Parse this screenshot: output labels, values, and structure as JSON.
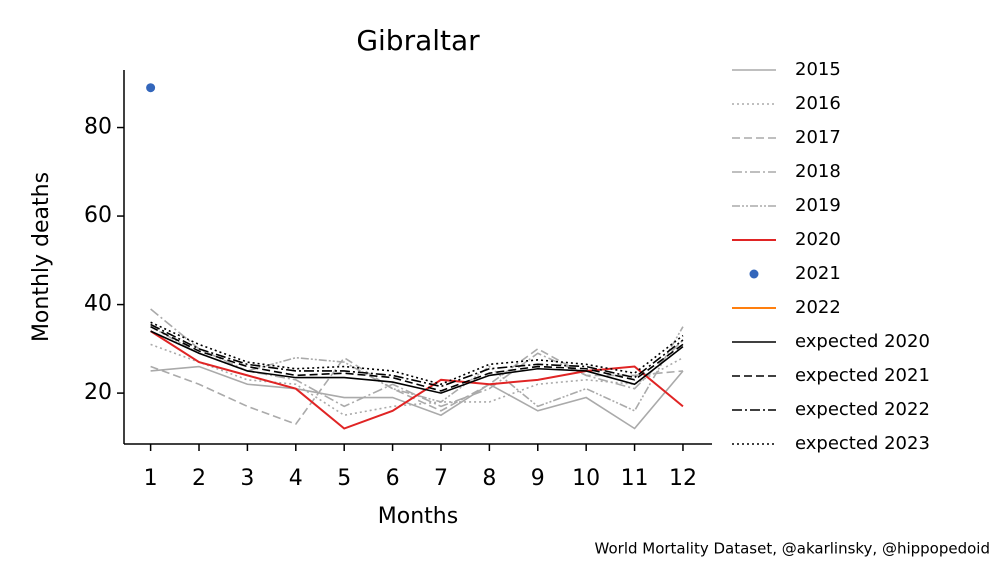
{
  "chart_data": {
    "type": "line",
    "title": "Gibraltar",
    "xlabel": "Months",
    "ylabel": "Monthly deaths",
    "caption": "World Mortality Dataset, @akarlinsky, @hippopedoid",
    "x": [
      1,
      2,
      3,
      4,
      5,
      6,
      7,
      8,
      9,
      10,
      11,
      12
    ],
    "xlim": [
      0.45,
      12.6
    ],
    "xticks": [
      1,
      2,
      3,
      4,
      5,
      6,
      7,
      8,
      9,
      10,
      11,
      12
    ],
    "ylim": [
      8.5,
      93
    ],
    "yticks": [
      20,
      40,
      60,
      80
    ],
    "legend": "outside right",
    "series": [
      {
        "name": "2015",
        "color": "#aaaaaa",
        "linestyle": "solid",
        "values": [
          25,
          26,
          22,
          21,
          19,
          19,
          15,
          22,
          16,
          19,
          12,
          25
        ]
      },
      {
        "name": "2016",
        "color": "#aaaaaa",
        "linestyle": "dotted",
        "values": [
          31,
          27,
          23,
          22,
          15,
          17,
          18,
          18,
          22,
          23,
          22,
          28
        ]
      },
      {
        "name": "2017",
        "color": "#aaaaaa",
        "linestyle": "dashed",
        "values": [
          26,
          22,
          17,
          13,
          28,
          21,
          16,
          22,
          30,
          24,
          24,
          25
        ]
      },
      {
        "name": "2018",
        "color": "#aaaaaa",
        "linestyle": "dashdot",
        "values": [
          39,
          30,
          25,
          23,
          17,
          22,
          17,
          21,
          29,
          24,
          21,
          32
        ]
      },
      {
        "name": "2019",
        "color": "#aaaaaa",
        "linestyle": "dashdotdot",
        "values": [
          35,
          29,
          25,
          28,
          27,
          21,
          18,
          26,
          17,
          21,
          16,
          35
        ]
      },
      {
        "name": "2020",
        "color": "#e02424",
        "linestyle": "solid",
        "width": 2,
        "values": [
          34,
          27,
          24,
          21,
          12,
          16,
          23,
          22,
          23,
          25,
          26,
          17
        ]
      },
      {
        "name": "2021",
        "color": "#3366bb",
        "marker": "o",
        "values": [
          89,
          null,
          null,
          null,
          null,
          null,
          null,
          null,
          null,
          null,
          null,
          null
        ]
      },
      {
        "name": "2022",
        "color": "#ff7f0e",
        "linestyle": "solid",
        "width": 2,
        "values": [
          null,
          null,
          null,
          null,
          null,
          null,
          null,
          null,
          null,
          null,
          null,
          null
        ]
      },
      {
        "name": "expected 2020",
        "color": "#000000",
        "linestyle": "solid",
        "values": [
          34,
          29,
          25,
          23.5,
          23.5,
          22.5,
          20,
          24,
          25.5,
          25,
          22,
          30.5
        ]
      },
      {
        "name": "expected 2021",
        "color": "#000000",
        "linestyle": "dashed",
        "values": [
          35,
          29.5,
          26,
          24,
          24.5,
          23.5,
          20.5,
          24.5,
          26,
          25.5,
          23,
          31
        ]
      },
      {
        "name": "expected 2022",
        "color": "#000000",
        "linestyle": "dashdot",
        "values": [
          35.5,
          30,
          26.5,
          25,
          25,
          24,
          21.5,
          25.5,
          26.5,
          26,
          23.5,
          32
        ]
      },
      {
        "name": "expected 2023",
        "color": "#000000",
        "linestyle": "dotted",
        "values": [
          36,
          31,
          27,
          25.5,
          26,
          25,
          22,
          26.5,
          27.5,
          26.5,
          24.5,
          33
        ]
      }
    ]
  }
}
